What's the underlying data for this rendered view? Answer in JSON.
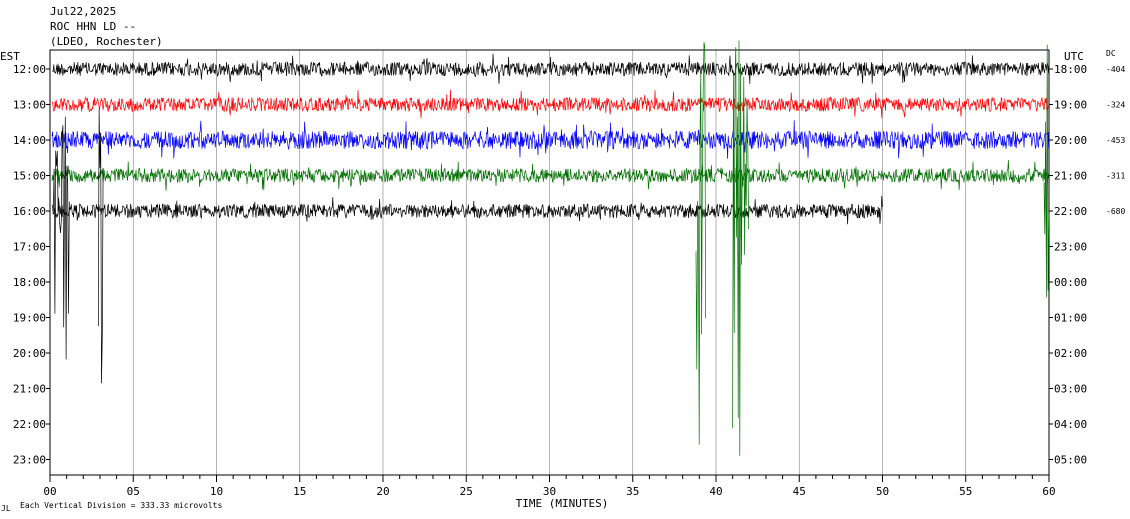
{
  "header": {
    "date": "Jul22,2025",
    "station": "ROC HHN LD --",
    "location": "(LDEO, Rochester)"
  },
  "labels": {
    "left_tz": "EST",
    "right_tz": "UTC",
    "dc": "DC",
    "footer_mark": "JL",
    "scale_note": "Each Vertical Division =  333.33 microvolts"
  },
  "colors": {
    "trace_cycle": [
      "#000000",
      "#ff0000",
      "#0000ff",
      "#007000"
    ],
    "grid": "#808080",
    "background": "#ffffff"
  },
  "chart_data": {
    "type": "line",
    "title": "",
    "xlabel": "TIME (MINUTES)",
    "ylabel": "",
    "xlim": [
      0,
      60
    ],
    "x_ticks": [
      "00",
      "01",
      "02",
      "03",
      "04",
      "05",
      "06",
      "07",
      "08",
      "09",
      "10",
      "11",
      "12",
      "13",
      "14",
      "15",
      "16",
      "17",
      "18",
      "19",
      "20",
      "21",
      "22",
      "23",
      "24",
      "25",
      "26",
      "27",
      "28",
      "29",
      "30",
      "31",
      "32",
      "33",
      "34",
      "35",
      "36",
      "37",
      "38",
      "39",
      "40",
      "41",
      "42",
      "43",
      "44",
      "45",
      "46",
      "47",
      "48",
      "49",
      "50",
      "51",
      "52",
      "53",
      "54",
      "55",
      "56",
      "57",
      "58",
      "59",
      "60"
    ],
    "x_tick_labels": [
      "00",
      "05",
      "10",
      "15",
      "20",
      "25",
      "30",
      "35",
      "40",
      "45",
      "50",
      "55",
      "60"
    ],
    "y_left_labels": [
      "12:00",
      "13:00",
      "14:00",
      "15:00",
      "16:00",
      "17:00",
      "18:00",
      "19:00",
      "20:00",
      "21:00",
      "22:00",
      "23:00"
    ],
    "y_right_labels": [
      "18:00",
      "19:00",
      "20:00",
      "21:00",
      "22:00",
      "23:00",
      "00:00",
      "01:00",
      "02:00",
      "03:00",
      "04:00",
      "05:00"
    ],
    "dc_values": [
      "-404",
      "-324",
      "-453",
      "-311",
      "-680"
    ],
    "series": [
      {
        "hour": "12:00",
        "end_minute": 60
      },
      {
        "hour": "13:00",
        "end_minute": 60
      },
      {
        "hour": "14:00",
        "end_minute": 60
      },
      {
        "hour": "15:00",
        "end_minute": 60
      },
      {
        "hour": "16:00",
        "end_minute": 50
      }
    ],
    "vertical_division_microvolts": 333.33
  }
}
